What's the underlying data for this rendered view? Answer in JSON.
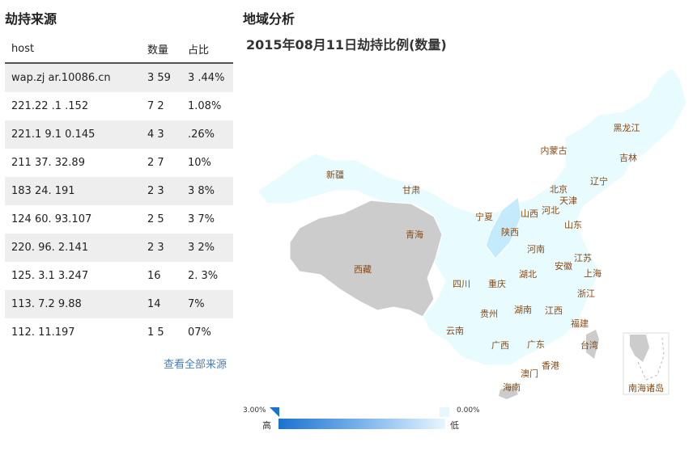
{
  "left": {
    "title": "劫持来源",
    "columns": [
      "host",
      "数量",
      "占比"
    ],
    "rows": [
      [
        "wap.zj  ar.10086.cn",
        "3 59",
        "3 .44%"
      ],
      [
        "221.22  .1 .152",
        "7  2",
        "1.08%"
      ],
      [
        "221.1  9.1 0.145",
        "4  3",
        ".26%"
      ],
      [
        "211  37. 32.89",
        "2  7",
        "  10%"
      ],
      [
        "183  24.  191",
        "2  3",
        "3  8%"
      ],
      [
        "124  60.  93.107",
        "2  5",
        "3  7%"
      ],
      [
        "220.  96.  2.141",
        "2  3",
        "3  2%"
      ],
      [
        "125.  3.1  3.247",
        "16",
        "2.  3%"
      ],
      [
        "113.  7.2  9.88",
        "14",
        "  7%"
      ],
      [
        "112.      11.197",
        "1  5",
        "07%"
      ]
    ],
    "view_all": "查看全部来源"
  },
  "right": {
    "title": "地域分析",
    "chart_title": "2015年08月11日劫持比例(数量)",
    "provinces": [
      {
        "name": "黑龙江"
      },
      {
        "name": "吉林"
      },
      {
        "name": "内蒙古"
      },
      {
        "name": "辽宁"
      },
      {
        "name": "新疆"
      },
      {
        "name": "甘肃"
      },
      {
        "name": "北京"
      },
      {
        "name": "天津"
      },
      {
        "name": "宁夏"
      },
      {
        "name": "山西"
      },
      {
        "name": "河北"
      },
      {
        "name": "山东"
      },
      {
        "name": "青海"
      },
      {
        "name": "陕西"
      },
      {
        "name": "河南"
      },
      {
        "name": "江苏"
      },
      {
        "name": "西藏"
      },
      {
        "name": "湖北"
      },
      {
        "name": "安徽"
      },
      {
        "name": "上海"
      },
      {
        "name": "四川"
      },
      {
        "name": "重庆"
      },
      {
        "name": "浙江"
      },
      {
        "name": "贵州"
      },
      {
        "name": "湖南"
      },
      {
        "name": "江西"
      },
      {
        "name": "云南"
      },
      {
        "name": "福建"
      },
      {
        "name": "广西"
      },
      {
        "name": "广东"
      },
      {
        "name": "台湾"
      },
      {
        "name": "香港"
      },
      {
        "name": "澳门"
      },
      {
        "name": "海南"
      },
      {
        "name": "南海诸岛"
      }
    ],
    "legend": {
      "max": "3.00%",
      "min": "0.00%",
      "high": "高",
      "low": "低"
    }
  }
}
